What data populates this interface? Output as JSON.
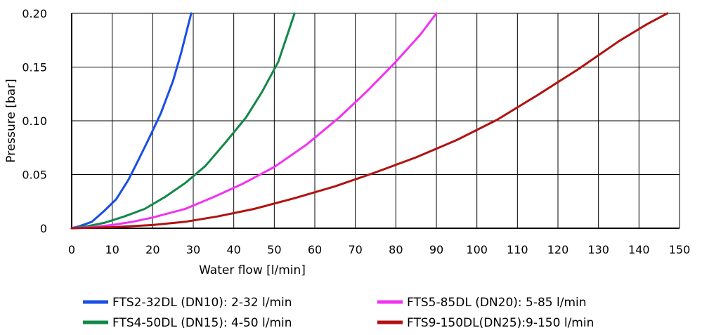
{
  "chart_data": {
    "type": "line",
    "xlabel": "Water flow [l/min]",
    "ylabel": "Pressure [bar]",
    "xlim": [
      0,
      150
    ],
    "ylim": [
      0,
      0.2
    ],
    "x_ticks": [
      "0",
      "10",
      "20",
      "30",
      "40",
      "50",
      "60",
      "70",
      "80",
      "90",
      "100",
      "110",
      "120",
      "130",
      "140",
      "150"
    ],
    "y_ticks": [
      "0",
      "0.05",
      "0.10",
      "0.15",
      "0.20"
    ],
    "grid": true,
    "legend_position": "bottom",
    "series": [
      {
        "name": "FTS2-32DL (DN10): 2-32 l/min",
        "color": "#1a4ee6",
        "x": [
          0,
          2,
          5,
          8,
          11,
          14,
          16,
          19,
          22,
          25,
          27,
          29.5
        ],
        "y": [
          0,
          0.002,
          0.006,
          0.016,
          0.027,
          0.045,
          0.06,
          0.083,
          0.107,
          0.137,
          0.163,
          0.2
        ]
      },
      {
        "name": "FTS4-50DL (DN15): 4-50 l/min",
        "color": "#13884a",
        "x": [
          0,
          4,
          8,
          13,
          18,
          23,
          28,
          33,
          38,
          43,
          47,
          51,
          55
        ],
        "y": [
          0,
          0.002,
          0.005,
          0.011,
          0.018,
          0.029,
          0.042,
          0.058,
          0.08,
          0.103,
          0.127,
          0.155,
          0.2
        ]
      },
      {
        "name": "FTS5-85DL (DN20): 5-85 l/min",
        "color": "#f132f1",
        "x": [
          0,
          5,
          10,
          15,
          20,
          28,
          35,
          42,
          50,
          58,
          66,
          73,
          80,
          86,
          90
        ],
        "y": [
          0,
          0.001,
          0.003,
          0.006,
          0.01,
          0.018,
          0.029,
          0.041,
          0.057,
          0.078,
          0.103,
          0.128,
          0.155,
          0.18,
          0.2
        ]
      },
      {
        "name": "FTS9-150DL(DN25):9-150 l/min",
        "color": "#b01212",
        "x": [
          0,
          10,
          20,
          28,
          36,
          45,
          55,
          65,
          75,
          85,
          95,
          105,
          115,
          125,
          135,
          142,
          147
        ],
        "y": [
          0,
          0.001,
          0.003,
          0.006,
          0.011,
          0.018,
          0.028,
          0.039,
          0.052,
          0.066,
          0.082,
          0.101,
          0.124,
          0.148,
          0.174,
          0.19,
          0.2
        ]
      }
    ]
  }
}
